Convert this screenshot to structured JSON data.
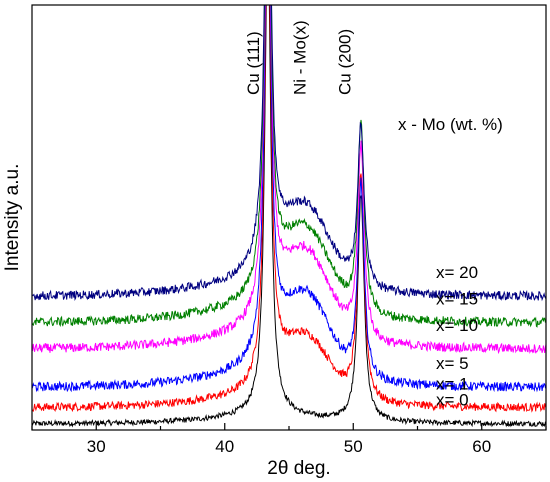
{
  "chart_data": {
    "type": "line",
    "title": "",
    "xlabel": "2θ deg.",
    "ylabel": "Intensity a.u.",
    "xlim": [
      25,
      65
    ],
    "x_ticks": [
      30,
      40,
      50,
      60
    ],
    "y_ticks_shown": false,
    "grid": false,
    "legend_title": "x - Mo (wt. %)",
    "peak_annotations": [
      {
        "text": "Cu (111)",
        "x": 43.3
      },
      {
        "text": "Ni - Mo(x)",
        "x": 45.5
      },
      {
        "text": "Cu (200)",
        "x": 50.4
      }
    ],
    "series": [
      {
        "name": "x= 0",
        "color": "#000000",
        "baseline": 0.05,
        "peak111": 12.0,
        "peak200": 5.6,
        "broad": 0.0,
        "tail": 0.3
      },
      {
        "name": "x= 1",
        "color": "#ff0000",
        "baseline": 0.45,
        "peak111": 12.0,
        "peak200": 5.6,
        "broad": 1.45,
        "tail": 0.55
      },
      {
        "name": "x= 5",
        "color": "#0000ff",
        "baseline": 0.95,
        "peak111": 12.0,
        "peak200": 4.8,
        "broad": 1.9,
        "tail": 0.75
      },
      {
        "name": "x= 10",
        "color": "#ff00ff",
        "baseline": 1.9,
        "peak111": 12.0,
        "peak200": 4.8,
        "broad": 2.0,
        "tail": 0.8
      },
      {
        "name": "x= 15",
        "color": "#008000",
        "baseline": 2.55,
        "peak111": 12.0,
        "peak200": 4.7,
        "broad": 1.9,
        "tail": 0.8
      },
      {
        "name": "x= 20",
        "color": "#000080",
        "baseline": 3.2,
        "peak111": 12.0,
        "peak200": 4.0,
        "broad": 1.8,
        "tail": 0.8
      }
    ]
  }
}
